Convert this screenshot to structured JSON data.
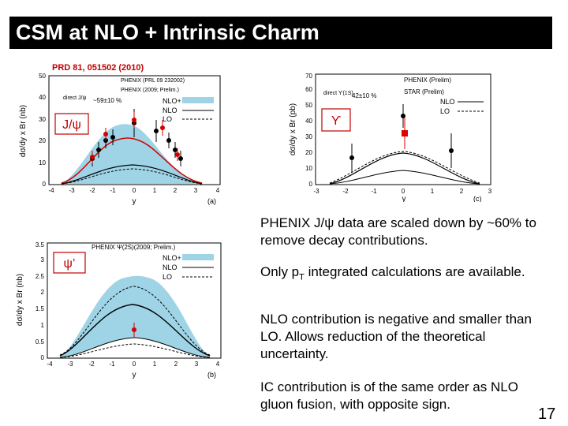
{
  "title": "CSM at NLO + Intrinsic Charm",
  "reference": "PRD 81, 051502 (2010)",
  "slide_number": "17",
  "bullets": [
    "PHENIX J/ψ data are scaled down by ~60% to remove decay contributions.",
    "Only p",
    "T",
    " integrated calculations are available.",
    "NLO contribution is negative and smaller than LO. Allows reduction of the theoretical uncertainty.",
    "IC contribution is of the same order as NLO gluon fusion, with opposite sign."
  ],
  "panels": {
    "a": {
      "particle": "J/ψ",
      "panel_label": "(a)",
      "ylabel": "dσ/dy x Br (nb)",
      "xlabel": "y",
      "legend": [
        "PHENIX (PRL 09 232002)",
        "PHENIX (2009; Prelim.)",
        "direct J/ψ",
        "~59±10 %",
        "NLO+",
        "NLO",
        "LO"
      ],
      "yticks": [
        "0",
        "10",
        "20",
        "30",
        "40",
        "50"
      ],
      "xticks": [
        "-4",
        "-3",
        "-2",
        "-1",
        "0",
        "1",
        "2",
        "3",
        "4"
      ]
    },
    "b": {
      "particle": "ψ’",
      "panel_label": "(b)",
      "ylabel": "dσ/dy x Br (nb)",
      "xlabel": "y",
      "legend": [
        "PHENIX Ψ(2S)(2009; Prelim.)",
        "NLO+",
        "NLO",
        "LO"
      ],
      "yticks": [
        "0",
        "0.5",
        "1",
        "1.5",
        "2",
        "2.5",
        "3",
        "3.5"
      ],
      "xticks": [
        "-4",
        "-3",
        "-2",
        "-1",
        "0",
        "1",
        "2",
        "3",
        "4"
      ]
    },
    "c": {
      "particle": "ϒ",
      "panel_label": "(c)",
      "ylabel": "dσ/dy x Br (pb)",
      "xlabel": "y",
      "legend": [
        "PHENIX (Prelim)",
        "STAR (Prelim)",
        "direct ϒ(1S)",
        "42±10 %",
        "NLO",
        "LO"
      ],
      "yticks": [
        "0",
        "10",
        "20",
        "30",
        "40",
        "50",
        "60",
        "70"
      ],
      "xticks": [
        "-3",
        "-2",
        "-1",
        "0",
        "1",
        "2",
        "3"
      ]
    }
  },
  "colors": {
    "band": "#9fd3e6",
    "data_black": "#000000",
    "data_red": "#d40000",
    "star_red": "#e00000"
  }
}
